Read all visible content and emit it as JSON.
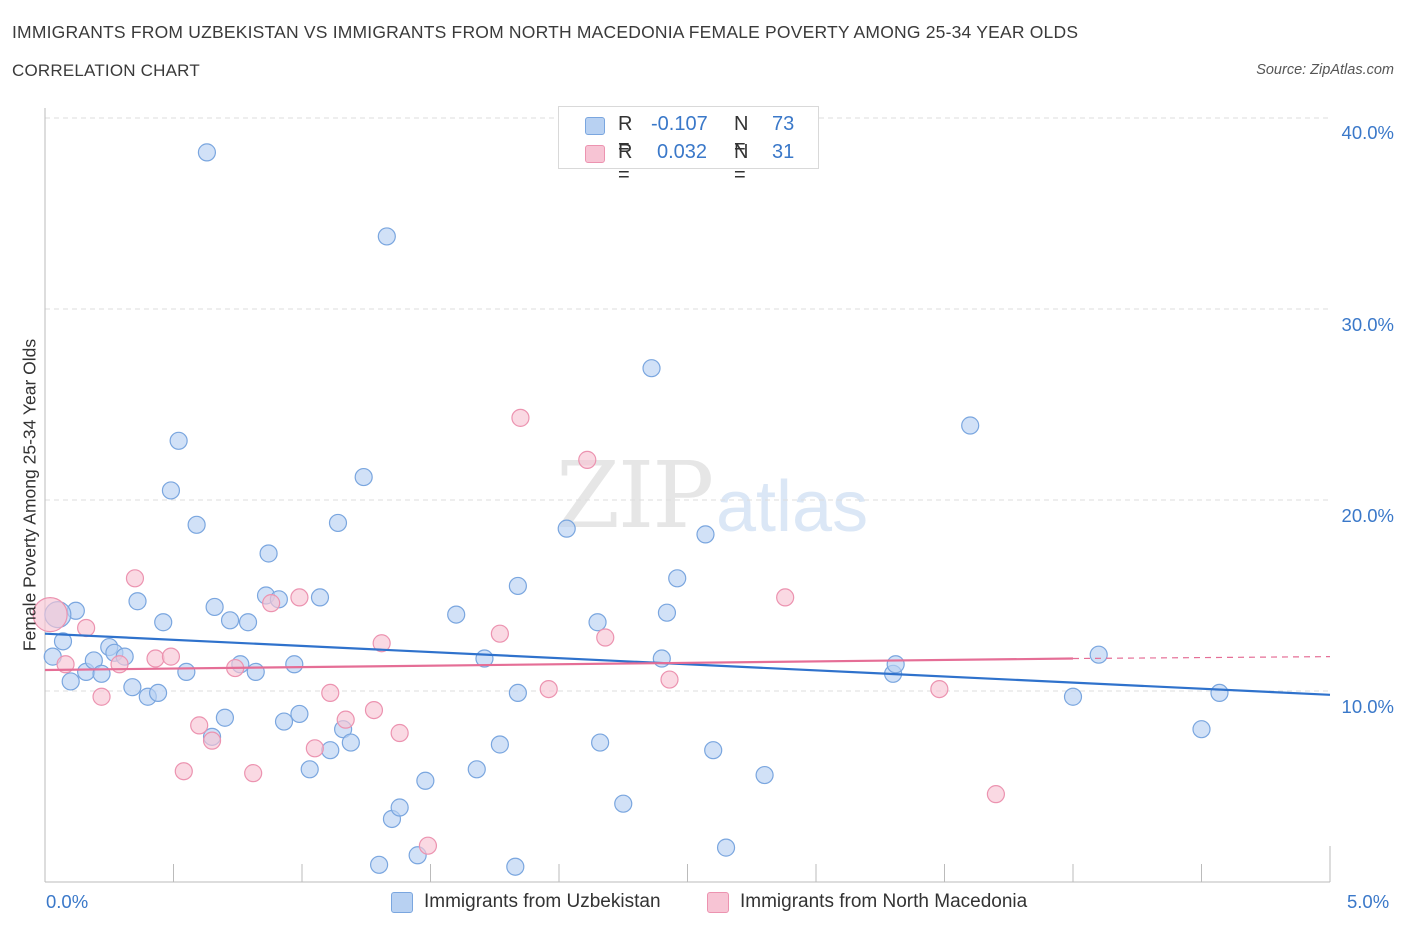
{
  "header": {
    "title": "IMMIGRANTS FROM UZBEKISTAN VS IMMIGRANTS FROM NORTH MACEDONIA FEMALE POVERTY AMONG 25-34 YEAR OLDS",
    "subtitle": "CORRELATION CHART",
    "source": "Source: ZipAtlas.com"
  },
  "watermark": {
    "zip": "ZIP",
    "atlas": "atlas"
  },
  "legend": {
    "uzbekistan": {
      "r_label": "R =",
      "r_value": "-0.107",
      "n_label": "N =",
      "n_value": "73"
    },
    "macedonia": {
      "r_label": "R =",
      "r_value": "0.032",
      "n_label": "N =",
      "n_value": "31"
    }
  },
  "colors": {
    "blue_fill": "#b8d1f2",
    "blue_stroke": "#7aa6df",
    "blue_line": "#2f72cc",
    "pink_fill": "#f7c4d4",
    "pink_stroke": "#ec93b0",
    "pink_line": "#e56e96",
    "grid": "#dedede",
    "tick_text": "#3a78c9"
  },
  "chart_data": {
    "type": "scatter",
    "title": "IMMIGRANTS FROM UZBEKISTAN VS IMMIGRANTS FROM NORTH MACEDONIA FEMALE POVERTY AMONG 25-34 YEAR OLDS",
    "xlabel": "",
    "ylabel": "Female Poverty Among 25-34 Year Olds",
    "xlim": [
      0,
      5
    ],
    "ylim": [
      0,
      40
    ],
    "x_tick_labels": [
      "0.0%",
      "5.0%"
    ],
    "y_ticks": [
      10,
      20,
      30,
      40
    ],
    "y_tick_labels": [
      "10.0%",
      "20.0%",
      "30.0%",
      "40.0%"
    ],
    "grid": true,
    "series": [
      {
        "name": "Immigrants from Uzbekistan",
        "color": "#b8d1f2",
        "trend": {
          "x": [
            0,
            5
          ],
          "y": [
            13.0,
            9.8
          ]
        },
        "points": [
          [
            0.03,
            11.8
          ],
          [
            0.07,
            12.6
          ],
          [
            0.1,
            10.5
          ],
          [
            0.12,
            14.2
          ],
          [
            0.16,
            11.0
          ],
          [
            0.19,
            11.6
          ],
          [
            0.22,
            10.9
          ],
          [
            0.25,
            12.3
          ],
          [
            0.27,
            12.0
          ],
          [
            0.31,
            11.8
          ],
          [
            0.34,
            10.2
          ],
          [
            0.36,
            14.7
          ],
          [
            0.4,
            9.7
          ],
          [
            0.44,
            9.9
          ],
          [
            0.46,
            13.6
          ],
          [
            0.49,
            20.5
          ],
          [
            0.52,
            23.1
          ],
          [
            0.55,
            11.0
          ],
          [
            0.59,
            18.7
          ],
          [
            0.63,
            38.2
          ],
          [
            0.65,
            7.6
          ],
          [
            0.66,
            14.4
          ],
          [
            0.7,
            8.6
          ],
          [
            0.72,
            13.7
          ],
          [
            0.76,
            11.4
          ],
          [
            0.79,
            13.6
          ],
          [
            0.82,
            11.0
          ],
          [
            0.86,
            15.0
          ],
          [
            0.87,
            17.2
          ],
          [
            0.91,
            14.8
          ],
          [
            0.93,
            8.4
          ],
          [
            0.97,
            11.4
          ],
          [
            0.99,
            8.8
          ],
          [
            1.03,
            5.9
          ],
          [
            1.07,
            14.9
          ],
          [
            1.11,
            6.9
          ],
          [
            1.14,
            18.8
          ],
          [
            1.16,
            8.0
          ],
          [
            1.19,
            7.3
          ],
          [
            1.24,
            21.2
          ],
          [
            1.3,
            0.9
          ],
          [
            1.33,
            33.8
          ],
          [
            1.35,
            3.3
          ],
          [
            1.38,
            3.9
          ],
          [
            1.45,
            1.4
          ],
          [
            1.48,
            5.3
          ],
          [
            1.6,
            14.0
          ],
          [
            1.68,
            5.9
          ],
          [
            1.71,
            11.7
          ],
          [
            1.77,
            7.2
          ],
          [
            1.83,
            0.8
          ],
          [
            1.84,
            15.5
          ],
          [
            1.84,
            9.9
          ],
          [
            2.03,
            18.5
          ],
          [
            2.15,
            13.6
          ],
          [
            2.16,
            7.3
          ],
          [
            2.25,
            4.1
          ],
          [
            2.36,
            26.9
          ],
          [
            2.4,
            11.7
          ],
          [
            2.42,
            14.1
          ],
          [
            2.46,
            15.9
          ],
          [
            2.57,
            18.2
          ],
          [
            2.6,
            6.9
          ],
          [
            2.65,
            1.8
          ],
          [
            2.8,
            5.6
          ],
          [
            3.3,
            10.9
          ],
          [
            3.31,
            11.4
          ],
          [
            3.6,
            23.9
          ],
          [
            4.0,
            9.7
          ],
          [
            4.1,
            11.9
          ],
          [
            4.5,
            8.0
          ],
          [
            4.57,
            9.9
          ],
          [
            0.05,
            14.0
          ]
        ]
      },
      {
        "name": "Immigrants from North Macedonia",
        "color": "#f7c4d4",
        "trend": {
          "x": [
            0,
            4.0
          ],
          "y": [
            11.1,
            11.7
          ],
          "dashed_to": [
            5,
            11.8
          ]
        },
        "points": [
          [
            0.02,
            14.0
          ],
          [
            0.08,
            11.4
          ],
          [
            0.16,
            13.3
          ],
          [
            0.22,
            9.7
          ],
          [
            0.29,
            11.4
          ],
          [
            0.35,
            15.9
          ],
          [
            0.43,
            11.7
          ],
          [
            0.49,
            11.8
          ],
          [
            0.54,
            5.8
          ],
          [
            0.6,
            8.2
          ],
          [
            0.65,
            7.4
          ],
          [
            0.74,
            11.2
          ],
          [
            0.81,
            5.7
          ],
          [
            0.88,
            14.6
          ],
          [
            0.99,
            14.9
          ],
          [
            1.05,
            7.0
          ],
          [
            1.11,
            9.9
          ],
          [
            1.17,
            8.5
          ],
          [
            1.28,
            9.0
          ],
          [
            1.31,
            12.5
          ],
          [
            1.38,
            7.8
          ],
          [
            1.49,
            1.9
          ],
          [
            1.77,
            13.0
          ],
          [
            1.85,
            24.3
          ],
          [
            1.96,
            10.1
          ],
          [
            2.11,
            22.1
          ],
          [
            2.18,
            12.8
          ],
          [
            2.43,
            10.6
          ],
          [
            2.88,
            14.9
          ],
          [
            3.48,
            10.1
          ],
          [
            3.7,
            4.6
          ]
        ]
      }
    ]
  },
  "bottom_legend": {
    "uzbekistan": "Immigrants from Uzbekistan",
    "macedonia": "Immigrants from North Macedonia"
  }
}
